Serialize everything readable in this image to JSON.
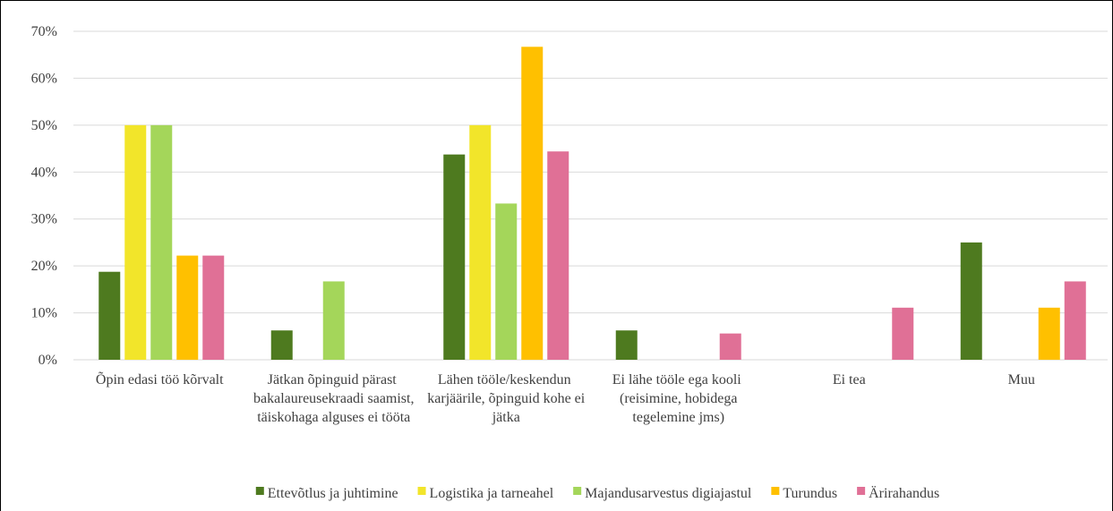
{
  "chart_data": {
    "type": "bar",
    "categories": [
      "Õpin edasi töö kõrvalt",
      "Jätkan õpinguid pärast bakalaureusekraadi saamist, täiskohaga alguses ei tööta",
      "Lähen tööle/keskendun karjäärile, õpinguid kohe ei jätka",
      "Ei lähe tööle ega kooli (reisimine, hobidega tegelemine jms)",
      "Ei tea",
      "Muu"
    ],
    "series": [
      {
        "name": "Ettevõtlus ja juhtimine",
        "color": "#4e7a1f",
        "values": [
          18.75,
          6.25,
          43.75,
          6.25,
          0,
          25
        ]
      },
      {
        "name": "Logistika ja tarneahel",
        "color": "#f2e52a",
        "values": [
          50,
          0,
          50,
          0,
          0,
          0
        ]
      },
      {
        "name": "Majandusarvestus digiajastul",
        "color": "#a4d65a",
        "values": [
          50,
          16.7,
          33.3,
          0,
          0,
          0
        ]
      },
      {
        "name": "Turundus",
        "color": "#ffc000",
        "values": [
          22.2,
          0,
          66.7,
          0,
          0,
          11.1
        ]
      },
      {
        "name": "Ärirahandus",
        "color": "#e07096",
        "values": [
          22.2,
          0,
          44.4,
          5.6,
          11.1,
          16.7
        ]
      }
    ],
    "ylim": [
      0,
      70
    ],
    "yticks": [
      {
        "value": 0,
        "label": "0%"
      },
      {
        "value": 10,
        "label": "10%"
      },
      {
        "value": 20,
        "label": "20%"
      },
      {
        "value": 30,
        "label": "30%"
      },
      {
        "value": 40,
        "label": "40%"
      },
      {
        "value": 50,
        "label": "50%"
      },
      {
        "value": 60,
        "label": "60%"
      },
      {
        "value": 70,
        "label": "70%"
      }
    ],
    "grid": true,
    "legend": "bottom"
  }
}
